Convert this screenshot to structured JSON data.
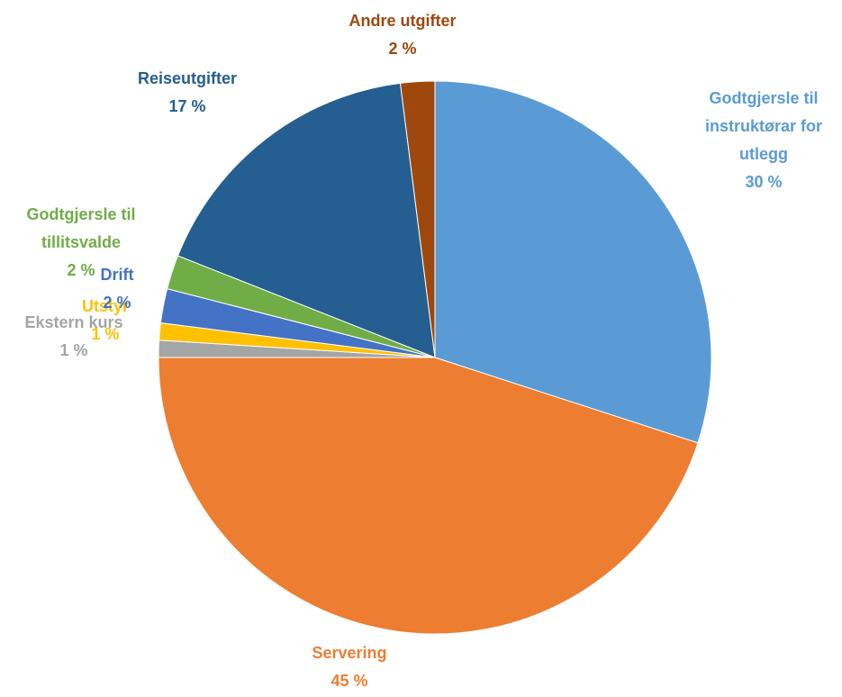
{
  "chart_data": {
    "type": "pie",
    "title": "",
    "slices": [
      {
        "name_lines": [
          "Godtgjersle til",
          "instruktørar  for",
          "utlegg"
        ],
        "value_label": "30 %",
        "value": 30,
        "color": "#5B9BD5"
      },
      {
        "name_lines": [
          "Servering"
        ],
        "value_label": "45 %",
        "value": 45,
        "color": "#ED7D31"
      },
      {
        "name_lines": [
          "Ekstern kurs"
        ],
        "value_label": "1 %",
        "value": 1,
        "color": "#A5A5A5"
      },
      {
        "name_lines": [
          "Utstyr"
        ],
        "value_label": "1 %",
        "value": 1,
        "color": "#FFC000"
      },
      {
        "name_lines": [
          "Drift"
        ],
        "value_label": "2 %",
        "value": 2,
        "color": "#4472C4"
      },
      {
        "name_lines": [
          "Godtgjersle til",
          "tillitsvalde"
        ],
        "value_label": "2 %",
        "value": 2,
        "color": "#70AD47"
      },
      {
        "name_lines": [
          "Reiseutgifter"
        ],
        "value_label": "17 %",
        "value": 17,
        "color": "#255E91"
      },
      {
        "name_lines": [
          "Andre utgifter"
        ],
        "value_label": "2 %",
        "value": 2,
        "color": "#9E480E"
      }
    ]
  }
}
